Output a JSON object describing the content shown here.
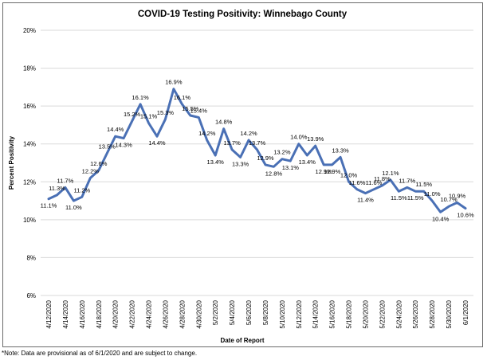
{
  "chart_data": {
    "type": "line",
    "title": "COVID-19 Testing Positivity: Winnebago County",
    "xlabel": "Date of Report",
    "ylabel": "Percent Positivity",
    "ylim": [
      6,
      20
    ],
    "y_ticks": [
      "6%",
      "8%",
      "10%",
      "12%",
      "14%",
      "16%",
      "18%",
      "20%"
    ],
    "x_tick_labels": [
      "4/12/2020",
      "4/14/2020",
      "4/16/2020",
      "4/18/2020",
      "4/20/2020",
      "4/22/2020",
      "4/24/2020",
      "4/26/2020",
      "4/28/2020",
      "4/30/2020",
      "5/2/2020",
      "5/4/2020",
      "5/6/2020",
      "5/8/2020",
      "5/10/2020",
      "5/12/2020",
      "5/14/2020",
      "5/16/2020",
      "5/18/2020",
      "5/20/2020",
      "5/22/2020",
      "5/24/2020",
      "5/26/2020",
      "5/28/2020",
      "5/30/2020",
      "6/1/2020"
    ],
    "grid": true,
    "legend": "none",
    "line_color": "#4a70b5",
    "x": [
      "4/12/2020",
      "4/13/2020",
      "4/14/2020",
      "4/15/2020",
      "4/16/2020",
      "4/17/2020",
      "4/18/2020",
      "4/19/2020",
      "4/20/2020",
      "4/21/2020",
      "4/22/2020",
      "4/23/2020",
      "4/24/2020",
      "4/25/2020",
      "4/26/2020",
      "4/27/2020",
      "4/28/2020",
      "4/29/2020",
      "4/30/2020",
      "5/1/2020",
      "5/2/2020",
      "5/3/2020",
      "5/4/2020",
      "5/5/2020",
      "5/6/2020",
      "5/7/2020",
      "5/8/2020",
      "5/9/2020",
      "5/10/2020",
      "5/11/2020",
      "5/12/2020",
      "5/13/2020",
      "5/14/2020",
      "5/15/2020",
      "5/16/2020",
      "5/17/2020",
      "5/18/2020",
      "5/19/2020",
      "5/20/2020",
      "5/21/2020",
      "5/22/2020",
      "5/23/2020",
      "5/24/2020",
      "5/25/2020",
      "5/26/2020",
      "5/27/2020",
      "5/28/2020",
      "5/29/2020",
      "5/30/2020",
      "5/31/2020",
      "6/1/2020"
    ],
    "values": [
      11.1,
      11.3,
      11.7,
      11.0,
      11.2,
      12.2,
      12.6,
      13.5,
      14.4,
      14.3,
      15.2,
      16.1,
      15.1,
      14.4,
      15.3,
      16.9,
      16.1,
      15.5,
      15.4,
      14.2,
      13.4,
      14.8,
      13.7,
      13.3,
      14.2,
      13.7,
      12.9,
      12.8,
      13.2,
      13.1,
      14.0,
      13.4,
      13.9,
      12.9,
      12.9,
      13.3,
      12.0,
      11.6,
      11.4,
      11.6,
      11.8,
      12.1,
      11.5,
      11.7,
      11.5,
      11.5,
      11.0,
      10.4,
      10.7,
      10.9,
      10.6
    ],
    "labels": [
      "11.1%",
      "11.3%",
      "11.7%",
      "11.0%",
      "11.2%",
      "12.2%",
      "12.6%",
      "13.5%",
      "14.4%",
      "14.3%",
      "15.2%",
      "16.1%",
      "15.1%",
      "14.4%",
      "15.3%",
      "16.9%",
      "16.1%",
      "15.5%",
      "15.4%",
      "14.2%",
      "13.4%",
      "14.8%",
      "13.7%",
      "13.3%",
      "14.2%",
      "13.7%",
      "12.9%",
      "12.8%",
      "13.2%",
      "13.1%",
      "14.0%",
      "13.4%",
      "13.9%",
      "12.9%",
      "12.9%",
      "13.3%",
      "12.0%",
      "11.6%",
      "11.4%",
      "11.6%",
      "11.8%",
      "12.1%",
      "11.5%",
      "11.7%",
      "11.5%",
      "11.5%",
      "11.0%",
      "10.4%",
      "10.7%",
      "10.9%",
      "10.6%"
    ]
  },
  "footnote": "*Note: Data are provisional as of 6/1/2020 and are subject to change."
}
